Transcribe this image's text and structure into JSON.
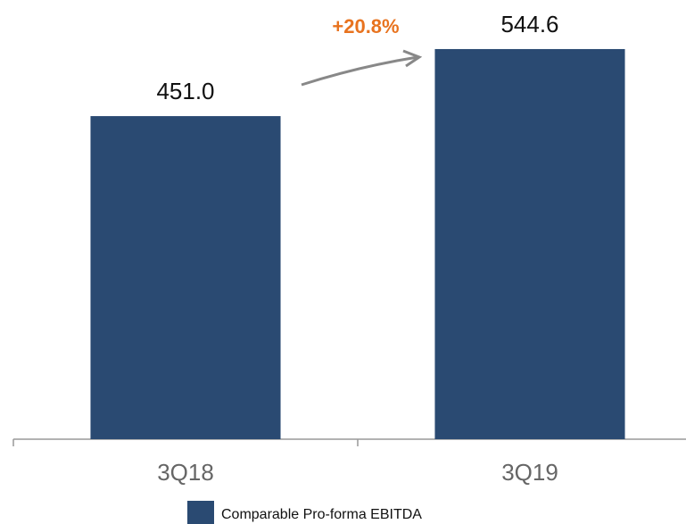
{
  "chart_data": {
    "type": "bar",
    "categories": [
      "3Q18",
      "3Q19"
    ],
    "series": [
      {
        "name": "Comparable Pro-forma EBITDA",
        "color": "#2a4a72",
        "values": [
          451.0,
          544.6
        ],
        "value_labels": [
          "451.0",
          "544.6"
        ]
      }
    ],
    "ylim": [
      0,
      600
    ],
    "annotation": "+20.8%"
  }
}
